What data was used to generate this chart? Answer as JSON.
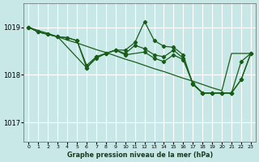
{
  "title": "Graphe pression niveau de la mer (hPa)",
  "ylim": [
    1016.6,
    1019.5
  ],
  "yticks": [
    1017,
    1018,
    1019
  ],
  "xlim": [
    -0.5,
    23.5
  ],
  "bg_color": "#c8e8e8",
  "grid_color": "#b0d8d8",
  "line_color": "#1a5c1a",
  "series": [
    {
      "x": [
        0,
        1,
        2,
        3,
        4,
        5,
        6,
        7,
        8,
        9,
        10,
        11,
        12,
        13,
        14,
        15,
        16,
        17,
        18,
        19,
        20,
        21,
        22,
        23
      ],
      "y": [
        1019.0,
        1018.93,
        1018.87,
        1018.8,
        1018.73,
        1018.67,
        1018.6,
        1018.53,
        1018.47,
        1018.4,
        1018.33,
        1018.27,
        1018.2,
        1018.13,
        1018.07,
        1018.0,
        1017.93,
        1017.87,
        1017.8,
        1017.73,
        1017.67,
        1018.45,
        1018.45,
        1018.45
      ],
      "has_marker": false
    },
    {
      "x": [
        0,
        1,
        2,
        3,
        4,
        5,
        6,
        7,
        8,
        9,
        10,
        11,
        12,
        13,
        14,
        15,
        16,
        17,
        18,
        19,
        20,
        21,
        22,
        23
      ],
      "y": [
        1019.0,
        1018.9,
        1018.85,
        1018.8,
        1018.78,
        1018.72,
        1018.2,
        1018.38,
        1018.45,
        1018.52,
        1018.52,
        1018.68,
        1019.12,
        1018.72,
        1018.6,
        1018.58,
        1018.42,
        1017.8,
        1017.62,
        1017.62,
        1017.62,
        1017.62,
        1018.28,
        1018.45
      ],
      "has_marker": true
    },
    {
      "x": [
        0,
        1,
        2,
        3,
        4,
        5,
        6,
        7,
        8,
        9,
        10,
        11,
        12,
        13,
        14,
        15,
        16,
        17,
        18,
        19,
        20,
        21,
        22,
        23
      ],
      "y": [
        1019.0,
        1018.9,
        1018.85,
        1018.8,
        1018.78,
        1018.72,
        1018.15,
        1018.38,
        1018.45,
        1018.52,
        1018.45,
        1018.62,
        1018.55,
        1018.42,
        1018.38,
        1018.52,
        1018.35,
        1017.82,
        1017.62,
        1017.62,
        1017.62,
        1017.62,
        1017.9,
        1018.45
      ],
      "has_marker": true
    },
    {
      "x": [
        0,
        1,
        3,
        6,
        7,
        8,
        9,
        10,
        12,
        13,
        14,
        15,
        16,
        17,
        18,
        19,
        20,
        21,
        22,
        23
      ],
      "y": [
        1019.0,
        1018.9,
        1018.8,
        1018.15,
        1018.35,
        1018.45,
        1018.52,
        1018.42,
        1018.48,
        1018.35,
        1018.28,
        1018.42,
        1018.32,
        1017.82,
        1017.62,
        1017.62,
        1017.62,
        1017.62,
        1017.9,
        1018.45
      ],
      "has_marker": true
    }
  ]
}
